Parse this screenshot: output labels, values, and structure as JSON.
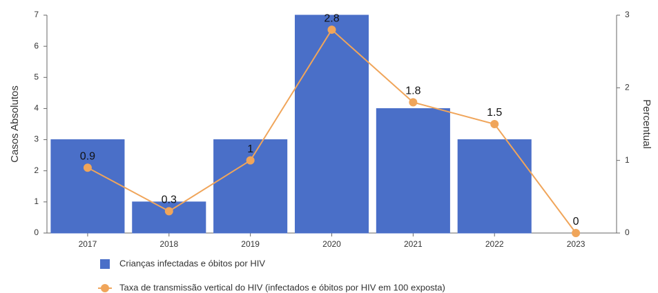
{
  "chart_data": {
    "type": "combo",
    "categories": [
      "2017",
      "2018",
      "2019",
      "2020",
      "2021",
      "2022",
      "2023"
    ],
    "series": [
      {
        "name": "Crianças infectadas e óbitos por HIV",
        "type": "bar",
        "color": "#4a6fc8",
        "values": [
          3,
          1,
          3,
          7,
          4,
          3,
          0
        ]
      },
      {
        "name": "Taxa de transmissão vertical do HIV (infectados e óbitos por HIV em 100 exposta)",
        "type": "line",
        "axis": "y2",
        "color": "#f0a55a",
        "values": [
          0.9,
          0.3,
          1,
          2.8,
          1.8,
          1.5,
          0
        ]
      }
    ],
    "ylabel": "Casos Absolutos",
    "y2label": "Percentual",
    "ylim": [
      0,
      7
    ],
    "yticks": [
      0,
      1,
      2,
      3,
      4,
      5,
      6,
      7
    ],
    "y2lim": [
      0,
      3
    ],
    "y2ticks": [
      0,
      1,
      2,
      3
    ],
    "grid": false
  }
}
